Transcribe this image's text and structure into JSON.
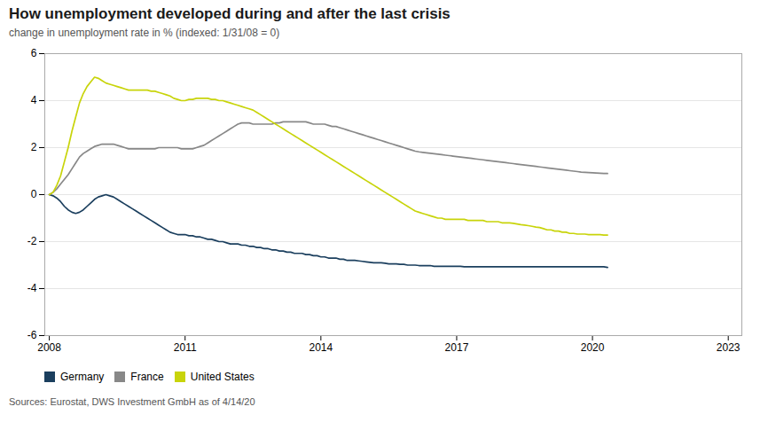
{
  "chart_data": {
    "type": "line",
    "title": "How unemployment developed during and after the last crisis",
    "subtitle": "change in unemployment rate in % (indexed: 1/31/08 = 0)",
    "source": "Sources: Eurostat, DWS Investment GmbH as of 4/14/20",
    "x": [
      2008,
      2008.0833333333333,
      2008.1666666666667,
      2008.25,
      2008.3333333333333,
      2008.4166666666667,
      2008.5,
      2008.5833333333333,
      2008.6666666666667,
      2008.75,
      2008.8333333333333,
      2008.9166666666667,
      2009,
      2009.0833333333333,
      2009.1666666666667,
      2009.25,
      2009.3333333333333,
      2009.4166666666667,
      2009.5,
      2009.5833333333333,
      2009.6666666666667,
      2009.75,
      2009.8333333333333,
      2009.9166666666667,
      2010,
      2010.0833333333333,
      2010.1666666666667,
      2010.25,
      2010.3333333333333,
      2010.4166666666667,
      2010.5,
      2010.5833333333333,
      2010.6666666666667,
      2010.75,
      2010.8333333333333,
      2010.9166666666667,
      2011,
      2011.0833333333333,
      2011.1666666666667,
      2011.25,
      2011.3333333333333,
      2011.4166666666667,
      2011.5,
      2011.5833333333333,
      2011.6666666666667,
      2011.75,
      2011.8333333333333,
      2011.9166666666667,
      2012,
      2012.0833333333333,
      2012.1666666666667,
      2012.25,
      2012.3333333333333,
      2012.4166666666667,
      2012.5,
      2012.5833333333333,
      2012.6666666666667,
      2012.75,
      2012.8333333333333,
      2012.9166666666667,
      2013,
      2013.0833333333333,
      2013.1666666666667,
      2013.25,
      2013.3333333333333,
      2013.4166666666667,
      2013.5,
      2013.5833333333333,
      2013.6666666666667,
      2013.75,
      2013.8333333333333,
      2013.9166666666667,
      2014,
      2014.0833333333333,
      2014.1666666666667,
      2014.25,
      2014.3333333333333,
      2014.4166666666667,
      2014.5,
      2014.5833333333333,
      2014.6666666666667,
      2014.75,
      2014.8333333333333,
      2014.9166666666667,
      2015,
      2015.0833333333333,
      2015.1666666666667,
      2015.25,
      2015.3333333333333,
      2015.4166666666667,
      2015.5,
      2015.5833333333333,
      2015.6666666666667,
      2015.75,
      2015.8333333333333,
      2015.9166666666667,
      2016,
      2016.0833333333333,
      2016.1666666666667,
      2016.25,
      2016.3333333333333,
      2016.4166666666667,
      2016.5,
      2016.5833333333333,
      2016.6666666666667,
      2016.75,
      2016.8333333333333,
      2016.9166666666667,
      2017,
      2017.0833333333333,
      2017.1666666666667,
      2017.25,
      2017.3333333333333,
      2017.4166666666667,
      2017.5,
      2017.5833333333333,
      2017.6666666666667,
      2017.75,
      2017.8333333333333,
      2017.9166666666667,
      2018,
      2018.0833333333333,
      2018.1666666666667,
      2018.25,
      2018.3333333333333,
      2018.4166666666667,
      2018.5,
      2018.5833333333333,
      2018.6666666666667,
      2018.75,
      2018.8333333333333,
      2018.9166666666667,
      2019,
      2019.0833333333333,
      2019.1666666666667,
      2019.25,
      2019.3333333333333,
      2019.4166666666667,
      2019.5,
      2019.5833333333333,
      2019.6666666666667,
      2019.75,
      2019.8333333333333,
      2019.9166666666667,
      2020,
      2020.0833333333333,
      2020.1666666666667,
      2020.25,
      2020.3333333333333
    ],
    "series": [
      {
        "name": "Germany",
        "color": "#1b3f5e",
        "values": [
          0.0,
          -0.05,
          -0.15,
          -0.3,
          -0.5,
          -0.65,
          -0.75,
          -0.8,
          -0.75,
          -0.65,
          -0.5,
          -0.35,
          -0.2,
          -0.1,
          -0.05,
          0.0,
          -0.05,
          -0.1,
          -0.2,
          -0.3,
          -0.4,
          -0.5,
          -0.6,
          -0.7,
          -0.8,
          -0.9,
          -1.0,
          -1.1,
          -1.2,
          -1.3,
          -1.4,
          -1.5,
          -1.6,
          -1.65,
          -1.7,
          -1.7,
          -1.7,
          -1.75,
          -1.75,
          -1.8,
          -1.8,
          -1.85,
          -1.9,
          -1.9,
          -1.95,
          -2.0,
          -2.0,
          -2.05,
          -2.1,
          -2.1,
          -2.1,
          -2.15,
          -2.15,
          -2.2,
          -2.2,
          -2.25,
          -2.25,
          -2.3,
          -2.3,
          -2.35,
          -2.35,
          -2.4,
          -2.4,
          -2.45,
          -2.45,
          -2.5,
          -2.5,
          -2.5,
          -2.55,
          -2.55,
          -2.6,
          -2.6,
          -2.65,
          -2.65,
          -2.7,
          -2.7,
          -2.7,
          -2.75,
          -2.75,
          -2.8,
          -2.8,
          -2.8,
          -2.82,
          -2.84,
          -2.86,
          -2.88,
          -2.9,
          -2.9,
          -2.9,
          -2.92,
          -2.95,
          -2.95,
          -2.95,
          -2.97,
          -2.97,
          -3.0,
          -3.0,
          -3.0,
          -3.02,
          -3.02,
          -3.02,
          -3.02,
          -3.05,
          -3.05,
          -3.05,
          -3.05,
          -3.05,
          -3.05,
          -3.05,
          -3.05,
          -3.07,
          -3.07,
          -3.07,
          -3.07,
          -3.07,
          -3.07,
          -3.07,
          -3.07,
          -3.07,
          -3.07,
          -3.07,
          -3.07,
          -3.07,
          -3.07,
          -3.07,
          -3.07,
          -3.07,
          -3.07,
          -3.07,
          -3.07,
          -3.07,
          -3.07,
          -3.07,
          -3.07,
          -3.07,
          -3.07,
          -3.07,
          -3.07,
          -3.07,
          -3.07,
          -3.07,
          -3.07,
          -3.07,
          -3.07,
          -3.07,
          -3.07,
          -3.07,
          -3.07,
          -3.1
        ]
      },
      {
        "name": "France",
        "color": "#888888",
        "values": [
          0.0,
          0.1,
          0.25,
          0.45,
          0.65,
          0.85,
          1.1,
          1.35,
          1.6,
          1.75,
          1.85,
          1.95,
          2.05,
          2.1,
          2.15,
          2.15,
          2.15,
          2.15,
          2.1,
          2.05,
          2.0,
          1.95,
          1.95,
          1.95,
          1.95,
          1.95,
          1.95,
          1.95,
          1.95,
          2.0,
          2.0,
          2.0,
          2.0,
          2.0,
          2.0,
          1.95,
          1.95,
          1.95,
          1.95,
          2.0,
          2.05,
          2.1,
          2.2,
          2.3,
          2.4,
          2.5,
          2.6,
          2.7,
          2.8,
          2.9,
          3.0,
          3.05,
          3.05,
          3.05,
          3.0,
          3.0,
          3.0,
          3.0,
          3.0,
          3.0,
          3.05,
          3.05,
          3.1,
          3.1,
          3.1,
          3.1,
          3.1,
          3.1,
          3.1,
          3.05,
          3.0,
          3.0,
          3.0,
          3.0,
          2.95,
          2.9,
          2.9,
          2.85,
          2.8,
          2.75,
          2.7,
          2.65,
          2.6,
          2.55,
          2.5,
          2.45,
          2.4,
          2.35,
          2.3,
          2.25,
          2.2,
          2.15,
          2.1,
          2.05,
          2.0,
          1.95,
          1.9,
          1.85,
          1.82,
          1.8,
          1.78,
          1.76,
          1.74,
          1.72,
          1.7,
          1.68,
          1.66,
          1.64,
          1.62,
          1.6,
          1.58,
          1.56,
          1.54,
          1.52,
          1.5,
          1.48,
          1.46,
          1.44,
          1.42,
          1.4,
          1.38,
          1.36,
          1.34,
          1.32,
          1.3,
          1.28,
          1.26,
          1.24,
          1.22,
          1.2,
          1.18,
          1.16,
          1.14,
          1.12,
          1.1,
          1.08,
          1.06,
          1.04,
          1.02,
          1.0,
          0.98,
          0.96,
          0.95,
          0.94,
          0.93,
          0.92,
          0.91,
          0.9,
          0.9
        ]
      },
      {
        "name": "United States",
        "color": "#c8d40a",
        "values": [
          0.0,
          0.1,
          0.4,
          0.8,
          1.4,
          2.0,
          2.7,
          3.3,
          3.9,
          4.3,
          4.6,
          4.8,
          5.0,
          4.95,
          4.85,
          4.75,
          4.7,
          4.65,
          4.6,
          4.55,
          4.5,
          4.45,
          4.45,
          4.45,
          4.45,
          4.45,
          4.45,
          4.4,
          4.4,
          4.35,
          4.3,
          4.25,
          4.2,
          4.1,
          4.05,
          4.0,
          4.0,
          4.05,
          4.05,
          4.1,
          4.1,
          4.1,
          4.1,
          4.05,
          4.05,
          4.0,
          4.0,
          3.95,
          3.9,
          3.85,
          3.8,
          3.75,
          3.7,
          3.65,
          3.6,
          3.5,
          3.4,
          3.3,
          3.2,
          3.1,
          3.0,
          2.9,
          2.8,
          2.7,
          2.6,
          2.5,
          2.4,
          2.3,
          2.2,
          2.1,
          2.0,
          1.9,
          1.8,
          1.7,
          1.6,
          1.5,
          1.4,
          1.3,
          1.2,
          1.1,
          1.0,
          0.9,
          0.8,
          0.7,
          0.6,
          0.5,
          0.4,
          0.3,
          0.2,
          0.1,
          0.0,
          -0.1,
          -0.2,
          -0.3,
          -0.4,
          -0.5,
          -0.6,
          -0.7,
          -0.75,
          -0.8,
          -0.85,
          -0.9,
          -0.95,
          -1.0,
          -1.0,
          -1.05,
          -1.05,
          -1.05,
          -1.05,
          -1.05,
          -1.05,
          -1.1,
          -1.1,
          -1.1,
          -1.1,
          -1.1,
          -1.15,
          -1.15,
          -1.15,
          -1.15,
          -1.2,
          -1.2,
          -1.2,
          -1.22,
          -1.25,
          -1.28,
          -1.3,
          -1.32,
          -1.35,
          -1.38,
          -1.4,
          -1.45,
          -1.5,
          -1.5,
          -1.55,
          -1.55,
          -1.6,
          -1.6,
          -1.65,
          -1.65,
          -1.68,
          -1.68,
          -1.68,
          -1.7,
          -1.7,
          -1.7,
          -1.7,
          -1.72,
          -1.72
        ]
      }
    ],
    "xlim": [
      2007.9,
      2023.3
    ],
    "xticks": [
      2008,
      2011,
      2014,
      2017,
      2020,
      2023
    ],
    "ylim": [
      -6,
      6
    ],
    "yticks": [
      -6,
      -4,
      -2,
      0,
      2,
      4,
      6
    ],
    "grid": true,
    "legend": "bottom"
  }
}
